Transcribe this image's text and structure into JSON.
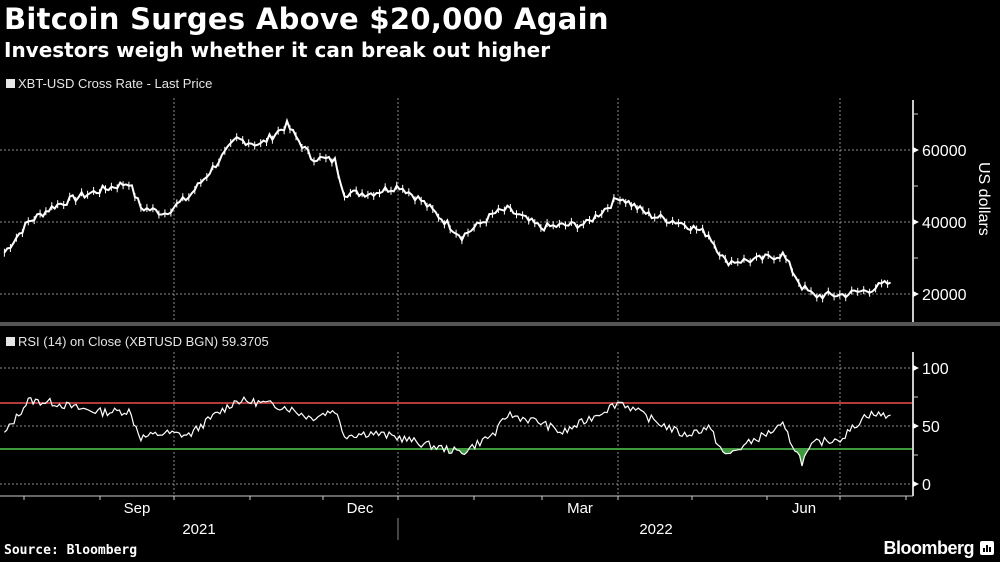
{
  "header": {
    "title": "Bitcoin Surges Above $20,000 Again",
    "subtitle": "Investors weigh whether it can break out higher"
  },
  "panels": {
    "price_legend": "XBT-USD Cross Rate - Last Price",
    "rsi_legend": "RSI (14)  on Close (XBTUSD BGN) 59.3705",
    "price_axis_label": "US dollars",
    "price_ticks": [
      "60000",
      "40000",
      "20000"
    ],
    "rsi_ticks": [
      "100",
      "50",
      "0"
    ]
  },
  "xaxis": {
    "months": [
      "Sep",
      "Dec",
      "Mar",
      "Jun"
    ],
    "years": [
      "2021",
      "2022"
    ]
  },
  "footer": {
    "source": "Source: Bloomberg",
    "brand": "Bloomberg"
  },
  "colors": {
    "background": "#000000",
    "series": "#ffffff",
    "overbought": "#b23a3a",
    "oversold": "#3f9a3f",
    "grid": "#8a8a8a"
  },
  "chart_data": [
    {
      "type": "line",
      "title": "XBT-USD Cross Rate - Last Price",
      "ylabel": "US dollars",
      "ylim": [
        14000,
        72000
      ],
      "yticks": [
        20000,
        40000,
        60000
      ],
      "xticks": [
        "Sep 2021",
        "Dec 2021",
        "Mar 2022",
        "Jun 2022"
      ],
      "note": "daily candlestick-style price bars, approximate closes",
      "x": [
        "2021-07-15",
        "2021-07-25",
        "2021-08-05",
        "2021-08-15",
        "2021-08-25",
        "2021-09-05",
        "2021-09-10",
        "2021-09-20",
        "2021-09-30",
        "2021-10-10",
        "2021-10-20",
        "2021-10-30",
        "2021-11-10",
        "2021-11-20",
        "2021-11-30",
        "2021-12-04",
        "2021-12-15",
        "2021-12-27",
        "2022-01-05",
        "2022-01-22",
        "2022-02-05",
        "2022-02-10",
        "2022-02-24",
        "2022-03-05",
        "2022-03-15",
        "2022-03-29",
        "2022-04-10",
        "2022-04-25",
        "2022-05-05",
        "2022-05-12",
        "2022-05-25",
        "2022-06-05",
        "2022-06-13",
        "2022-06-18",
        "2022-06-30",
        "2022-07-10",
        "2022-07-20"
      ],
      "values": [
        31500,
        40000,
        44500,
        47000,
        49000,
        51000,
        44000,
        42500,
        47000,
        55000,
        63000,
        61500,
        67000,
        58000,
        57000,
        48000,
        48000,
        50000,
        46000,
        36000,
        42500,
        43500,
        38500,
        39000,
        39500,
        47000,
        42000,
        39500,
        36500,
        29000,
        29500,
        31000,
        22000,
        19500,
        19800,
        21000,
        23200
      ]
    },
    {
      "type": "line",
      "title": "RSI (14) on Close (XBTUSD BGN) 59.3705",
      "ylim": [
        0,
        100
      ],
      "yticks": [
        0,
        50,
        100
      ],
      "reference_lines": [
        {
          "value": 70,
          "color": "#b23a3a"
        },
        {
          "value": 30,
          "color": "#3f9a3f"
        }
      ],
      "x": [
        "2021-07-15",
        "2021-07-25",
        "2021-08-05",
        "2021-08-15",
        "2021-08-25",
        "2021-09-05",
        "2021-09-10",
        "2021-09-20",
        "2021-09-30",
        "2021-10-10",
        "2021-10-20",
        "2021-10-30",
        "2021-11-10",
        "2021-11-20",
        "2021-11-30",
        "2021-12-04",
        "2021-12-15",
        "2021-12-27",
        "2022-01-05",
        "2022-01-22",
        "2022-02-05",
        "2022-02-10",
        "2022-02-24",
        "2022-03-05",
        "2022-03-15",
        "2022-03-29",
        "2022-04-10",
        "2022-04-25",
        "2022-05-05",
        "2022-05-12",
        "2022-05-25",
        "2022-06-05",
        "2022-06-13",
        "2022-06-18",
        "2022-06-30",
        "2022-07-10",
        "2022-07-20"
      ],
      "values": [
        43,
        72,
        70,
        65,
        62,
        63,
        40,
        44,
        42,
        58,
        72,
        70,
        66,
        57,
        64,
        42,
        44,
        40,
        35,
        27,
        44,
        60,
        53,
        44,
        55,
        71,
        57,
        42,
        49,
        24,
        39,
        50,
        19,
        35,
        40,
        60,
        59.37
      ]
    }
  ]
}
